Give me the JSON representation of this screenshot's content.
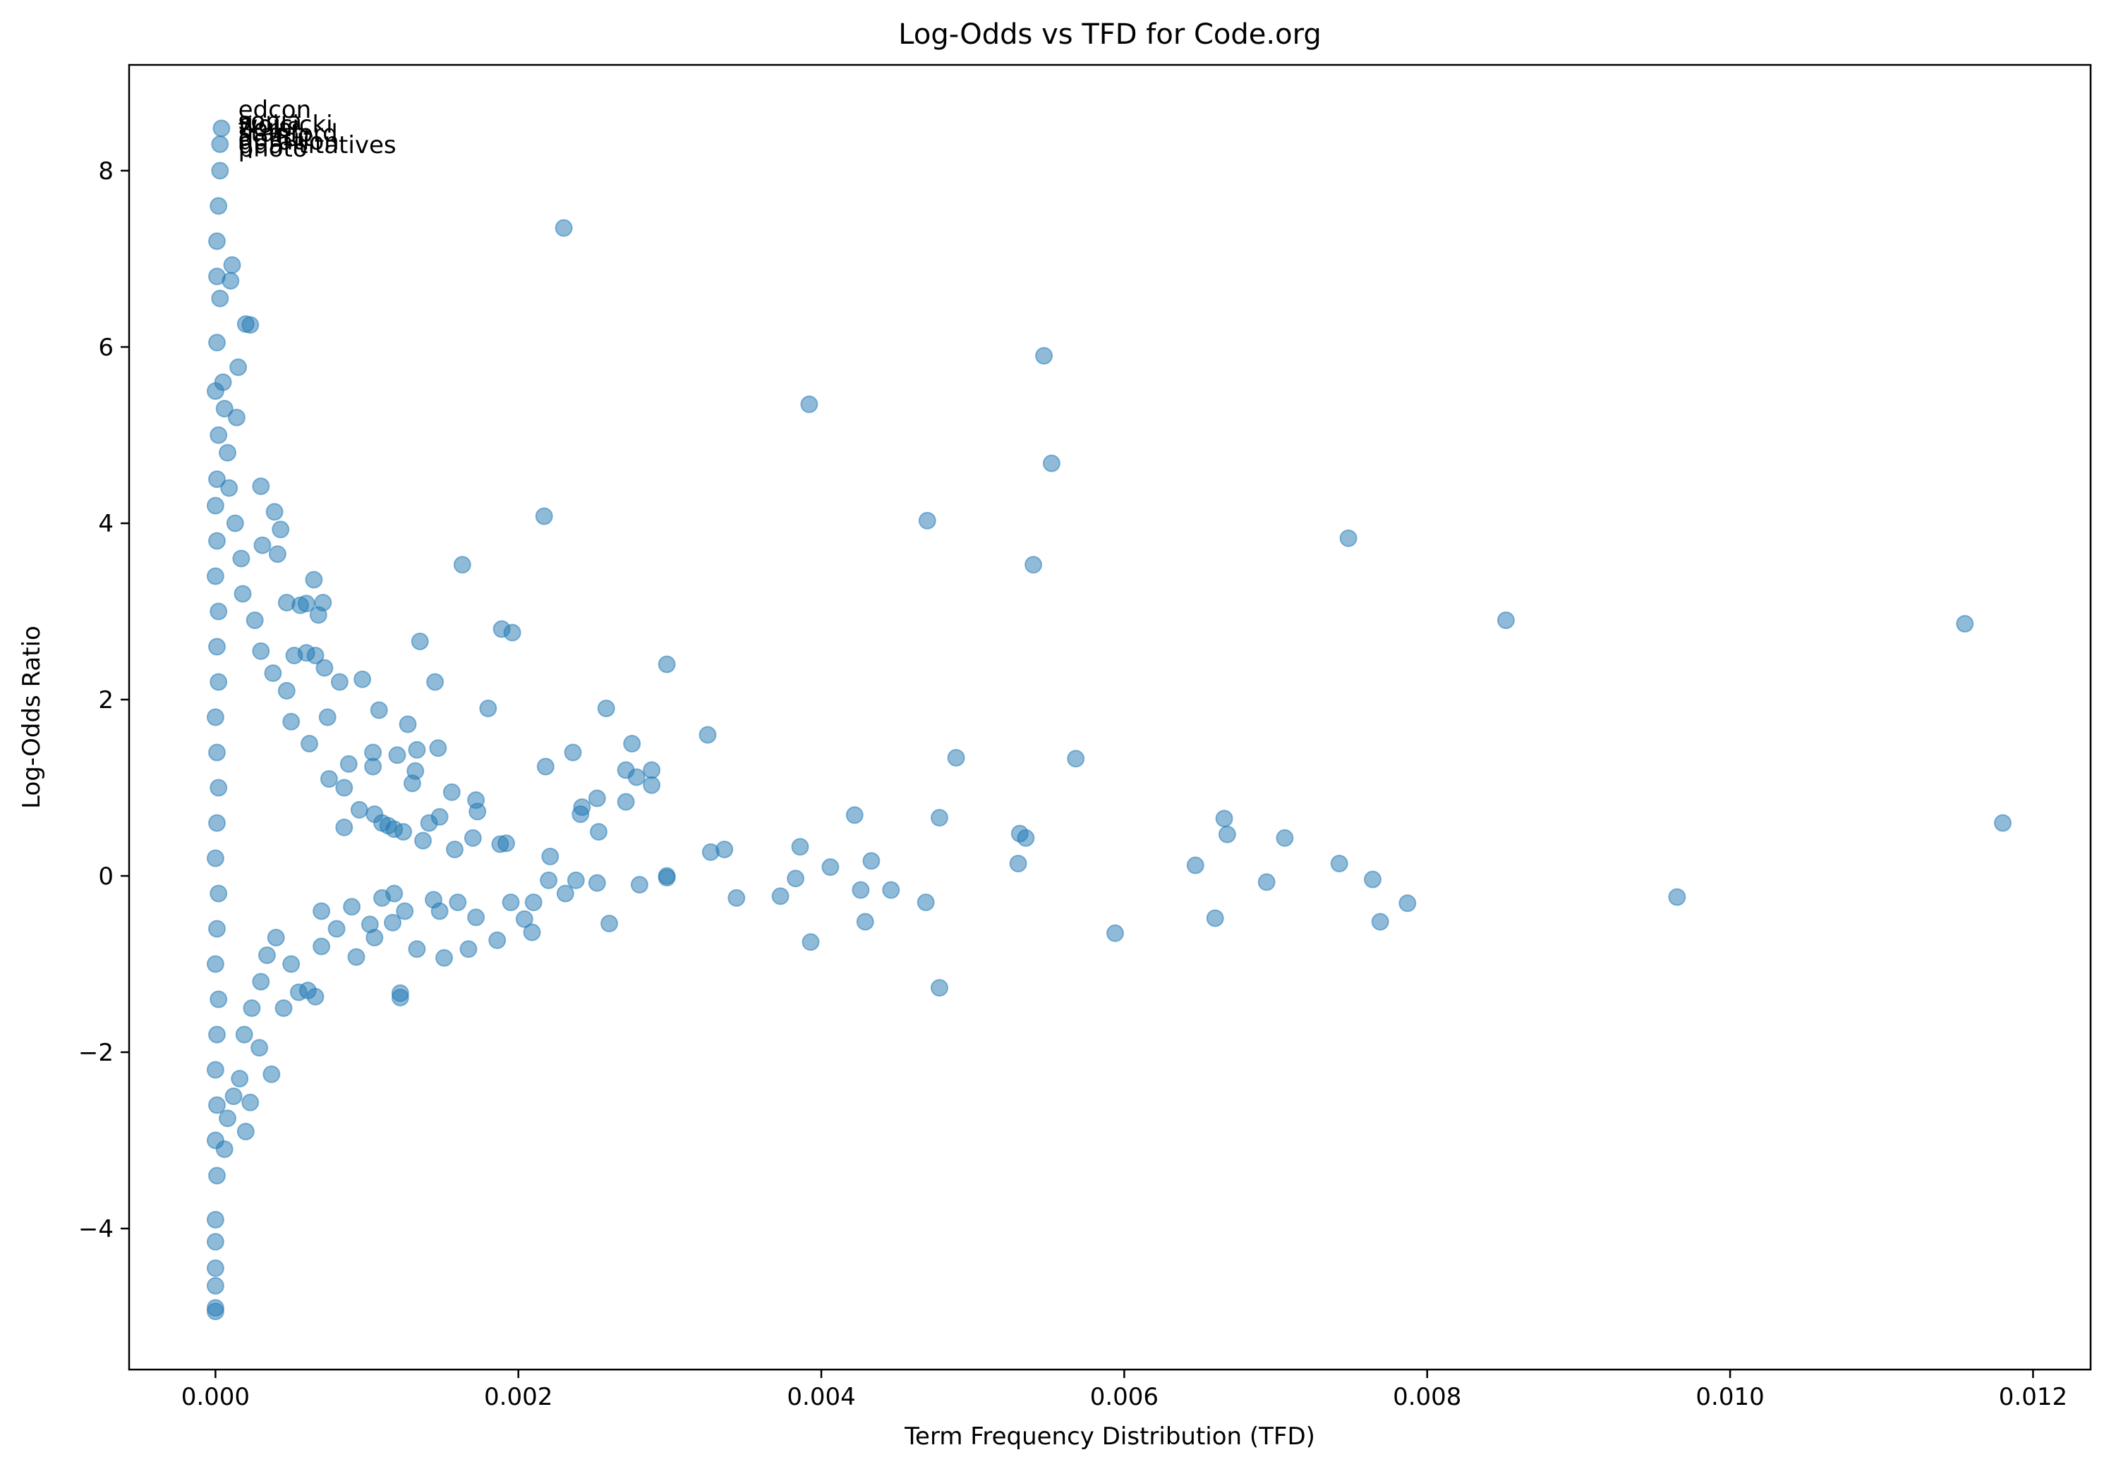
{
  "chart_data": {
    "type": "scatter",
    "title": "Log-Odds vs TFD for Code.org",
    "xlabel": "Term Frequency Distribution (TFD)",
    "ylabel": "Log-Odds Ratio",
    "xlim": [
      -0.00057,
      0.01238
    ],
    "ylim": [
      -5.6,
      9.2
    ],
    "xticks": [
      {
        "value": 0.0,
        "label": "0.000"
      },
      {
        "value": 0.002,
        "label": "0.002"
      },
      {
        "value": 0.004,
        "label": "0.004"
      },
      {
        "value": 0.006,
        "label": "0.006"
      },
      {
        "value": 0.008,
        "label": "0.008"
      },
      {
        "value": 0.01,
        "label": "0.010"
      },
      {
        "value": 0.012,
        "label": "0.012"
      }
    ],
    "yticks": [
      {
        "value": -4,
        "label": "−4"
      },
      {
        "value": -2,
        "label": "−2"
      },
      {
        "value": 0,
        "label": "0"
      },
      {
        "value": 2,
        "label": "2"
      },
      {
        "value": 4,
        "label": "4"
      },
      {
        "value": 6,
        "label": "6"
      },
      {
        "value": 8,
        "label": "8"
      }
    ],
    "grid": false,
    "marker_color": "#1f77b4",
    "marker_alpha": 0.5,
    "annotations": [
      {
        "text": "edcon",
        "x": 0.00015,
        "y": 8.6
      },
      {
        "text": "sonia",
        "x": 0.00015,
        "y": 8.47
      },
      {
        "text": "wojcicki",
        "x": 0.00015,
        "y": 8.43
      },
      {
        "text": "flora",
        "x": 0.00015,
        "y": 8.39
      },
      {
        "text": "stanford",
        "x": 0.00015,
        "y": 8.33
      },
      {
        "text": "deficit",
        "x": 0.00015,
        "y": 8.28
      },
      {
        "text": "duration",
        "x": 0.00015,
        "y": 8.24
      },
      {
        "text": "quantitatives",
        "x": 0.00015,
        "y": 8.2
      },
      {
        "text": "photo",
        "x": 0.00015,
        "y": 8.16
      }
    ],
    "points": [
      [
        0.0023,
        7.35
      ],
      [
        0.00547,
        5.9
      ],
      [
        0.00392,
        5.35
      ],
      [
        0.00552,
        4.68
      ],
      [
        0.00217,
        4.08
      ],
      [
        0.0047,
        4.03
      ],
      [
        0.00748,
        3.83
      ],
      [
        0.0054,
        3.53
      ],
      [
        0.00163,
        3.53
      ],
      [
        0.00852,
        2.9
      ],
      [
        0.01155,
        2.86
      ],
      [
        0.00135,
        2.66
      ],
      [
        0.00189,
        2.8
      ],
      [
        0.00196,
        2.76
      ],
      [
        0.00298,
        2.4
      ],
      [
        0.00145,
        2.2
      ],
      [
        0.00097,
        2.23
      ],
      [
        0.00082,
        2.2
      ],
      [
        0.00258,
        1.9
      ],
      [
        0.0018,
        1.9
      ],
      [
        0.00108,
        1.88
      ],
      [
        0.00325,
        1.6
      ],
      [
        0.00275,
        1.5
      ],
      [
        0.00127,
        1.72
      ],
      [
        0.00489,
        1.34
      ],
      [
        0.00568,
        1.33
      ],
      [
        0.00236,
        1.4
      ],
      [
        0.00218,
        1.24
      ],
      [
        0.00271,
        1.2
      ],
      [
        0.00288,
        1.2
      ],
      [
        0.00278,
        1.12
      ],
      [
        0.00288,
        1.03
      ],
      [
        0.00147,
        1.45
      ],
      [
        0.00133,
        1.43
      ],
      [
        0.00156,
        0.95
      ],
      [
        0.00172,
        0.86
      ],
      [
        0.00252,
        0.88
      ],
      [
        0.00242,
        0.78
      ],
      [
        0.00241,
        0.7
      ],
      [
        0.00253,
        0.5
      ],
      [
        0.00221,
        0.22
      ],
      [
        0.00271,
        0.84
      ],
      [
        0.00422,
        0.69
      ],
      [
        0.00478,
        0.66
      ],
      [
        0.00666,
        0.65
      ],
      [
        0.00668,
        0.47
      ],
      [
        0.00706,
        0.43
      ],
      [
        0.00531,
        0.48
      ],
      [
        0.00535,
        0.43
      ],
      [
        0.0118,
        0.6
      ],
      [
        0.00742,
        0.14
      ],
      [
        0.0053,
        0.14
      ],
      [
        0.00647,
        0.12
      ],
      [
        0.00433,
        0.17
      ],
      [
        0.00406,
        0.1
      ],
      [
        0.00386,
        0.33
      ],
      [
        0.00336,
        0.3
      ],
      [
        0.00327,
        0.27
      ],
      [
        0.00298,
        -0.02
      ],
      [
        0.00298,
        0.0
      ],
      [
        0.0028,
        -0.1
      ],
      [
        0.00252,
        -0.08
      ],
      [
        0.00238,
        -0.05
      ],
      [
        0.0022,
        -0.05
      ],
      [
        0.00383,
        -0.03
      ],
      [
        0.00764,
        -0.04
      ],
      [
        0.00694,
        -0.07
      ],
      [
        0.00965,
        -0.24
      ],
      [
        0.00344,
        -0.25
      ],
      [
        0.00373,
        -0.23
      ],
      [
        0.00426,
        -0.16
      ],
      [
        0.00446,
        -0.16
      ],
      [
        0.00469,
        -0.3
      ],
      [
        0.00787,
        -0.31
      ],
      [
        0.0066,
        -0.48
      ],
      [
        0.00769,
        -0.52
      ],
      [
        0.00594,
        -0.65
      ],
      [
        0.00393,
        -0.75
      ],
      [
        0.00429,
        -0.52
      ],
      [
        0.0026,
        -0.54
      ],
      [
        0.00231,
        -0.2
      ],
      [
        0.0021,
        -0.3
      ],
      [
        0.00204,
        -0.49
      ],
      [
        0.00195,
        -0.3
      ],
      [
        0.00209,
        -0.64
      ],
      [
        0.00186,
        -0.73
      ],
      [
        0.00478,
        -1.27
      ],
      [
        0.00122,
        -1.33
      ],
      [
        0.00122,
        -1.38
      ],
      [
        0.00093,
        -0.92
      ],
      [
        0.00105,
        -0.7
      ],
      [
        0.00037,
        -2.25
      ],
      [
        0.0002,
        -2.9
      ],
      [
        0.00023,
        -2.57
      ],
      [
        0.00029,
        -1.95
      ],
      [
        0.00055,
        -1.32
      ],
      [
        0.00061,
        -1.3
      ],
      [
        0.00066,
        -1.37
      ],
      [
        0.00188,
        0.36
      ],
      [
        0.00173,
        0.73
      ],
      [
        0.00192,
        0.37
      ],
      [
        0.0017,
        0.43
      ],
      [
        0.00158,
        0.3
      ],
      [
        0.00148,
        0.67
      ],
      [
        0.00141,
        0.6
      ],
      [
        0.00137,
        0.4
      ],
      [
        0.00144,
        -0.27
      ],
      [
        0.00148,
        -0.4
      ],
      [
        0.0016,
        -0.3
      ],
      [
        0.00172,
        -0.47
      ],
      [
        0.00167,
        -0.83
      ],
      [
        0.00151,
        -0.93
      ],
      [
        0.00133,
        -0.83
      ],
      [
        0.00117,
        -0.53
      ],
      [
        0.00125,
        -0.4
      ],
      [
        0.00114,
        0.57
      ],
      [
        0.00118,
        0.53
      ],
      [
        0.00124,
        0.5
      ],
      [
        0.0013,
        1.05
      ],
      [
        0.00132,
        1.19
      ],
      [
        0.0012,
        1.37
      ],
      [
        0.00104,
        1.4
      ],
      [
        0.00104,
        1.24
      ],
      [
        0.00088,
        1.27
      ],
      [
        0.00074,
        1.8
      ],
      [
        0.00066,
        2.5
      ],
      [
        0.00072,
        2.36
      ],
      [
        0.0006,
        2.53
      ],
      [
        0.00052,
        2.5
      ],
      [
        0.00065,
        3.36
      ],
      [
        0.00068,
        2.96
      ],
      [
        0.00071,
        3.1
      ],
      [
        0.00056,
        3.07
      ],
      [
        0.00047,
        3.1
      ],
      [
        0.0006,
        3.09
      ],
      [
        0.00041,
        3.65
      ],
      [
        0.00031,
        3.75
      ],
      [
        0.00039,
        4.13
      ],
      [
        0.00043,
        3.93
      ],
      [
        0.0003,
        4.42
      ],
      [
        0.0002,
        6.26
      ],
      [
        0.00023,
        6.25
      ],
      [
        0.00015,
        5.77
      ],
      [
        0.00014,
        5.2
      ],
      [
        0.00011,
        6.93
      ],
      [
        0.0001,
        6.75
      ],
      [
        4e-05,
        8.48
      ],
      [
        3e-05,
        8.3
      ],
      [
        3e-05,
        8.0
      ],
      [
        2e-05,
        7.6
      ],
      [
        1e-05,
        7.2
      ],
      [
        1e-05,
        6.8
      ],
      [
        3e-05,
        6.55
      ],
      [
        1e-05,
        6.05
      ],
      [
        0.0,
        5.5
      ],
      [
        2e-05,
        5.0
      ],
      [
        1e-05,
        4.5
      ],
      [
        0.0,
        4.2
      ],
      [
        1e-05,
        3.8
      ],
      [
        0.0,
        3.4
      ],
      [
        2e-05,
        3.0
      ],
      [
        1e-05,
        2.6
      ],
      [
        2e-05,
        2.2
      ],
      [
        0.0,
        1.8
      ],
      [
        1e-05,
        1.4
      ],
      [
        2e-05,
        1.0
      ],
      [
        1e-05,
        0.6
      ],
      [
        0.0,
        0.2
      ],
      [
        2e-05,
        -0.2
      ],
      [
        1e-05,
        -0.6
      ],
      [
        0.0,
        -1.0
      ],
      [
        2e-05,
        -1.4
      ],
      [
        1e-05,
        -1.8
      ],
      [
        0.0,
        -2.2
      ],
      [
        1e-05,
        -2.6
      ],
      [
        0.0,
        -3.0
      ],
      [
        1e-05,
        -3.4
      ],
      [
        0.0,
        -3.9
      ],
      [
        0.0,
        -4.15
      ],
      [
        0.0,
        -4.45
      ],
      [
        0.0,
        -4.65
      ],
      [
        0.0,
        -4.9
      ],
      [
        0.0,
        -4.94
      ],
      [
        8e-05,
        -2.75
      ],
      [
        0.00012,
        -2.5
      ],
      [
        0.00016,
        -2.3
      ],
      [
        6e-05,
        -3.1
      ],
      [
        0.00019,
        -1.8
      ],
      [
        0.00024,
        -1.5
      ],
      [
        0.0003,
        -1.2
      ],
      [
        0.00034,
        -0.9
      ],
      [
        0.0004,
        -0.7
      ],
      [
        0.00045,
        -1.5
      ],
      [
        0.0005,
        -1.0
      ],
      [
        0.0007,
        -0.8
      ],
      [
        0.0008,
        -0.6
      ],
      [
        0.0009,
        -0.35
      ],
      [
        0.00102,
        -0.55
      ],
      [
        0.0011,
        -0.25
      ],
      [
        0.00118,
        -0.2
      ],
      [
        0.0007,
        -0.4
      ],
      [
        0.00085,
        0.55
      ],
      [
        0.00095,
        0.75
      ],
      [
        0.00105,
        0.7
      ],
      [
        0.0011,
        0.6
      ],
      [
        0.00075,
        1.1
      ],
      [
        0.00085,
        1.0
      ],
      [
        0.00062,
        1.5
      ],
      [
        0.0005,
        1.75
      ],
      [
        0.00047,
        2.1
      ],
      [
        0.00038,
        2.3
      ],
      [
        0.0003,
        2.55
      ],
      [
        0.00026,
        2.9
      ],
      [
        0.00018,
        3.2
      ],
      [
        0.00017,
        3.6
      ],
      [
        0.00013,
        4.0
      ],
      [
        9e-05,
        4.4
      ],
      [
        8e-05,
        4.8
      ],
      [
        6e-05,
        5.3
      ],
      [
        5e-05,
        5.6
      ]
    ]
  }
}
